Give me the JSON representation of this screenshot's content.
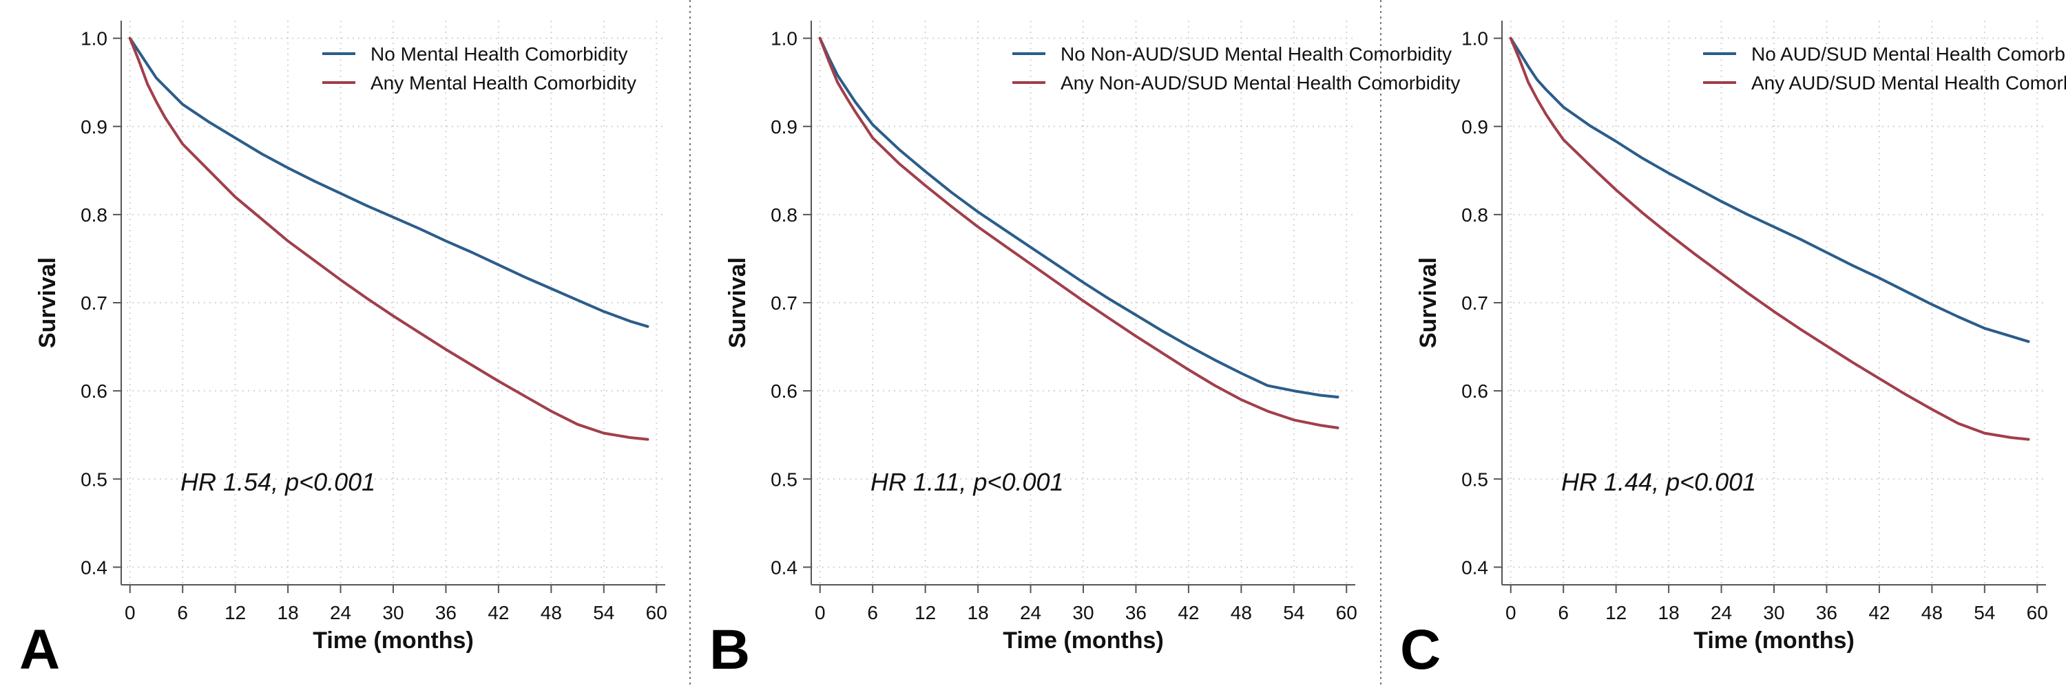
{
  "colors": {
    "series_0": "#2b5d8a",
    "series_1": "#a13f4b"
  },
  "chart_data": [
    {
      "type": "line",
      "panel_label": "A",
      "xlabel": "Time (months)",
      "ylabel": "Survival",
      "xlim": [
        -1,
        61
      ],
      "ylim": [
        0.38,
        1.02
      ],
      "xticks": [
        0,
        6,
        12,
        18,
        24,
        30,
        36,
        42,
        48,
        54,
        60
      ],
      "yticks": [
        0.4,
        0.5,
        0.6,
        0.7,
        0.8,
        0.9,
        1.0
      ],
      "ytick_labels": [
        "0.4",
        "0.5",
        "0.6",
        "0.7",
        "0.8",
        "0.9",
        "1.0"
      ],
      "grid": true,
      "legend_position": "top-right",
      "annotation": "HR 1.54, p<0.001",
      "x": [
        0,
        1,
        2,
        3,
        4,
        5,
        6,
        9,
        12,
        15,
        18,
        21,
        24,
        27,
        30,
        33,
        36,
        39,
        42,
        45,
        48,
        51,
        54,
        57,
        59
      ],
      "series": [
        {
          "name": "No Mental Health Comorbidity",
          "values": [
            1.0,
            0.985,
            0.97,
            0.955,
            0.945,
            0.935,
            0.925,
            0.905,
            0.887,
            0.869,
            0.853,
            0.838,
            0.824,
            0.81,
            0.797,
            0.784,
            0.77,
            0.757,
            0.743,
            0.729,
            0.716,
            0.703,
            0.69,
            0.679,
            0.673
          ]
        },
        {
          "name": "Any Mental Health Comorbidity",
          "values": [
            1.0,
            0.975,
            0.948,
            0.928,
            0.91,
            0.895,
            0.88,
            0.85,
            0.82,
            0.795,
            0.77,
            0.748,
            0.726,
            0.705,
            0.685,
            0.666,
            0.647,
            0.629,
            0.611,
            0.594,
            0.577,
            0.562,
            0.552,
            0.547,
            0.545
          ]
        }
      ]
    },
    {
      "type": "line",
      "panel_label": "B",
      "xlabel": "Time (months)",
      "ylabel": "Survival",
      "xlim": [
        -1,
        61
      ],
      "ylim": [
        0.38,
        1.02
      ],
      "xticks": [
        0,
        6,
        12,
        18,
        24,
        30,
        36,
        42,
        48,
        54,
        60
      ],
      "yticks": [
        0.4,
        0.5,
        0.6,
        0.7,
        0.8,
        0.9,
        1.0
      ],
      "ytick_labels": [
        "0.4",
        "0.5",
        "0.6",
        "0.7",
        "0.8",
        "0.9",
        "1.0"
      ],
      "grid": true,
      "legend_position": "top-right",
      "annotation": "HR 1.11, p<0.001",
      "x": [
        0,
        1,
        2,
        3,
        4,
        5,
        6,
        9,
        12,
        15,
        18,
        21,
        24,
        27,
        30,
        33,
        36,
        39,
        42,
        45,
        48,
        51,
        54,
        57,
        59
      ],
      "series": [
        {
          "name": "No Non-AUD/SUD Mental Health Comorbidity",
          "values": [
            1.0,
            0.978,
            0.958,
            0.943,
            0.928,
            0.915,
            0.902,
            0.874,
            0.849,
            0.825,
            0.803,
            0.783,
            0.763,
            0.743,
            0.723,
            0.704,
            0.686,
            0.668,
            0.651,
            0.635,
            0.62,
            0.606,
            0.6,
            0.595,
            0.593
          ]
        },
        {
          "name": "Any Non-AUD/SUD Mental Health Comorbidity",
          "values": [
            1.0,
            0.974,
            0.95,
            0.933,
            0.917,
            0.902,
            0.887,
            0.858,
            0.833,
            0.809,
            0.786,
            0.765,
            0.744,
            0.723,
            0.702,
            0.682,
            0.662,
            0.643,
            0.624,
            0.606,
            0.59,
            0.577,
            0.567,
            0.561,
            0.558
          ]
        }
      ]
    },
    {
      "type": "line",
      "panel_label": "C",
      "xlabel": "Time (months)",
      "ylabel": "Survival",
      "xlim": [
        -1,
        61
      ],
      "ylim": [
        0.38,
        1.02
      ],
      "xticks": [
        0,
        6,
        12,
        18,
        24,
        30,
        36,
        42,
        48,
        54,
        60
      ],
      "yticks": [
        0.4,
        0.5,
        0.6,
        0.7,
        0.8,
        0.9,
        1.0
      ],
      "ytick_labels": [
        "0.4",
        "0.5",
        "0.6",
        "0.7",
        "0.8",
        "0.9",
        "1.0"
      ],
      "grid": true,
      "legend_position": "top-right",
      "annotation": "HR 1.44, p<0.001",
      "x": [
        0,
        1,
        2,
        3,
        4,
        5,
        6,
        9,
        12,
        15,
        18,
        21,
        24,
        27,
        30,
        33,
        36,
        39,
        42,
        45,
        48,
        51,
        54,
        57,
        59
      ],
      "series": [
        {
          "name": "No AUD/SUD Mental Health Comorbidity",
          "values": [
            1.0,
            0.984,
            0.968,
            0.953,
            0.942,
            0.932,
            0.922,
            0.901,
            0.883,
            0.864,
            0.847,
            0.831,
            0.815,
            0.8,
            0.786,
            0.772,
            0.757,
            0.742,
            0.728,
            0.713,
            0.698,
            0.684,
            0.671,
            0.662,
            0.656
          ]
        },
        {
          "name": "Any AUD/SUD Mental Health Comorbidity",
          "values": [
            1.0,
            0.976,
            0.95,
            0.931,
            0.914,
            0.899,
            0.885,
            0.856,
            0.828,
            0.802,
            0.778,
            0.755,
            0.733,
            0.711,
            0.69,
            0.67,
            0.651,
            0.632,
            0.614,
            0.596,
            0.579,
            0.563,
            0.552,
            0.547,
            0.545
          ]
        }
      ]
    }
  ]
}
